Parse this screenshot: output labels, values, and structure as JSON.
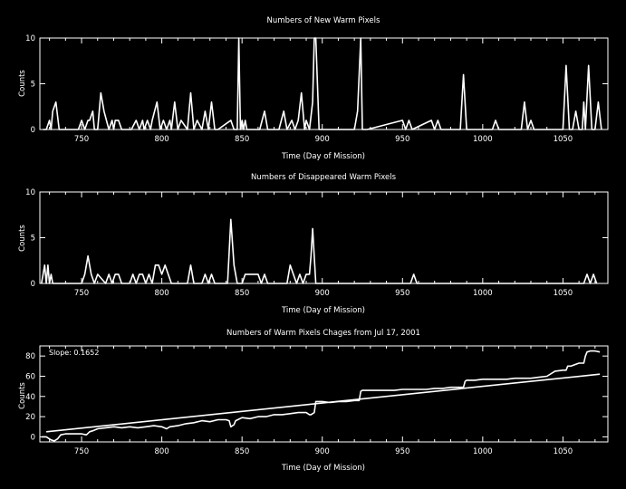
{
  "colors": {
    "background": "#000000",
    "foreground": "#ffffff"
  },
  "chart_data": [
    {
      "type": "line",
      "title": "Numbers of New Warm Pixels",
      "xlabel": "Time (Day of Mission)",
      "ylabel": "Counts",
      "xlim": [
        724,
        1078
      ],
      "ylim": [
        0,
        10
      ],
      "x_ticks": [
        750,
        800,
        850,
        900,
        950,
        1000,
        1050
      ],
      "y_ticks": [
        0,
        5,
        10
      ],
      "grid": false,
      "series": [
        {
          "x": [
            726,
            728,
            730,
            731,
            732,
            734,
            736,
            748,
            750,
            752,
            754,
            755,
            757,
            758,
            760,
            762,
            764,
            767,
            769,
            770,
            771,
            773,
            775,
            781,
            784,
            786,
            788,
            789,
            791,
            793,
            794,
            797,
            799,
            801,
            803,
            805,
            806,
            808,
            810,
            812,
            816,
            818,
            820,
            822,
            825,
            827,
            829,
            831,
            833,
            835,
            843,
            845,
            847,
            848,
            849,
            850,
            851,
            852,
            853,
            855,
            861,
            864,
            866,
            873,
            876,
            878,
            881,
            883,
            885,
            887,
            889,
            890,
            892,
            894,
            895,
            896,
            898,
            900,
            920,
            922,
            924,
            925,
            926,
            928,
            950,
            952,
            954,
            956,
            968,
            970,
            972,
            974,
            986,
            988,
            990,
            992,
            1006,
            1008,
            1010,
            1024,
            1026,
            1028,
            1030,
            1032,
            1050,
            1052,
            1054,
            1056,
            1058,
            1060,
            1062,
            1063,
            1064,
            1066,
            1068,
            1070,
            1072,
            1074
          ],
          "y": [
            0,
            0,
            1,
            0,
            2,
            3,
            0,
            0,
            1,
            0,
            1,
            1,
            2,
            0,
            0,
            4,
            2,
            0,
            1,
            0,
            1,
            1,
            0,
            0,
            1,
            0,
            1,
            0,
            1,
            0,
            1,
            3,
            0,
            1,
            0,
            1,
            0,
            3,
            0,
            1,
            0,
            4,
            0,
            1,
            0,
            2,
            0,
            3,
            0,
            0,
            1,
            0,
            0,
            10,
            0,
            1,
            0,
            1,
            0,
            0,
            0,
            2,
            0,
            0,
            2,
            0,
            1,
            0,
            1,
            4,
            0,
            1,
            0,
            3,
            10,
            10,
            0,
            0,
            0,
            2,
            10,
            0,
            0,
            0,
            1,
            0,
            1,
            0,
            1,
            0,
            1,
            0,
            0,
            6,
            0,
            0,
            0,
            1,
            0,
            0,
            3,
            0,
            1,
            0,
            0,
            7,
            0,
            0,
            2,
            0,
            0,
            3,
            0,
            7,
            0,
            0,
            3,
            0
          ]
        }
      ]
    },
    {
      "type": "line",
      "title": "Numbers of Disappeared Warm Pixels",
      "xlabel": "Time (Day of Mission)",
      "ylabel": "Counts",
      "xlim": [
        724,
        1078
      ],
      "ylim": [
        0,
        10
      ],
      "x_ticks": [
        750,
        800,
        850,
        900,
        950,
        1000,
        1050
      ],
      "y_ticks": [
        0,
        5,
        10
      ],
      "grid": false,
      "series": [
        {
          "x": [
            725,
            727,
            728,
            729,
            730,
            731,
            732,
            750,
            752,
            754,
            756,
            758,
            760,
            765,
            767,
            769,
            771,
            773,
            775,
            780,
            782,
            784,
            786,
            788,
            790,
            792,
            794,
            796,
            798,
            800,
            802,
            804,
            806,
            808,
            816,
            818,
            820,
            825,
            827,
            829,
            831,
            833,
            841,
            843,
            845,
            847,
            850,
            852,
            860,
            862,
            864,
            866,
            878,
            880,
            882,
            884,
            886,
            888,
            890,
            892,
            893,
            894,
            896,
            898,
            955,
            957,
            959,
            1063,
            1065,
            1067,
            1069,
            1071
          ],
          "y": [
            0,
            2,
            0,
            2,
            0,
            1,
            0,
            0,
            1,
            3,
            1,
            0,
            1,
            0,
            1,
            0,
            1,
            1,
            0,
            0,
            1,
            0,
            1,
            1,
            0,
            1,
            0,
            2,
            2,
            1,
            2,
            1,
            0,
            0,
            0,
            2,
            0,
            0,
            1,
            0,
            1,
            0,
            0,
            7,
            2,
            0,
            0,
            1,
            1,
            0,
            1,
            0,
            0,
            2,
            1,
            0,
            1,
            0,
            1,
            1,
            3,
            6,
            0,
            0,
            0,
            1,
            0,
            0,
            1,
            0,
            1,
            0
          ]
        }
      ]
    },
    {
      "type": "line",
      "title": "Numbers of Warm Pixels Chages from Jul 17, 2001",
      "xlabel": "Time (Day of Mission)",
      "ylabel": "Counts",
      "annotation": "Slope: 0.1652",
      "xlim": [
        724,
        1078
      ],
      "ylim": [
        -5,
        90
      ],
      "x_ticks": [
        750,
        800,
        850,
        900,
        950,
        1000,
        1050
      ],
      "y_ticks": [
        0,
        20,
        40,
        60,
        80
      ],
      "grid": false,
      "series": [
        {
          "name": "",
          "x": [
            725,
            728,
            731,
            733,
            735,
            737,
            740,
            745,
            750,
            753,
            755,
            757,
            760,
            765,
            770,
            775,
            780,
            785,
            790,
            795,
            800,
            803,
            805,
            810,
            815,
            820,
            825,
            830,
            835,
            840,
            842,
            843,
            845,
            846,
            850,
            855,
            860,
            865,
            870,
            875,
            880,
            885,
            890,
            892,
            893,
            895,
            896,
            900,
            905,
            910,
            915,
            920,
            923,
            924,
            925,
            930,
            935,
            940,
            945,
            950,
            955,
            960,
            965,
            970,
            975,
            980,
            985,
            988,
            989,
            990,
            995,
            1000,
            1005,
            1010,
            1015,
            1020,
            1025,
            1030,
            1035,
            1040,
            1045,
            1050,
            1052,
            1053,
            1055,
            1060,
            1063,
            1064,
            1065,
            1067,
            1070,
            1073
          ],
          "y": [
            0,
            0,
            -3,
            -4,
            -2,
            2,
            3,
            3,
            3,
            2,
            5,
            6,
            8,
            9,
            10,
            9,
            10,
            9,
            10,
            11,
            10,
            8,
            10,
            11,
            13,
            14,
            16,
            15,
            17,
            17,
            16,
            10,
            12,
            16,
            19,
            18,
            20,
            20,
            22,
            22,
            23,
            24,
            24,
            22,
            22,
            24,
            35,
            35,
            34,
            35,
            35,
            36,
            36,
            45,
            46,
            46,
            46,
            46,
            46,
            47,
            47,
            47,
            47,
            48,
            48,
            49,
            49,
            49,
            55,
            56,
            56,
            57,
            57,
            57,
            57,
            58,
            58,
            58,
            59,
            60,
            65,
            66,
            66,
            70,
            70,
            73,
            73,
            80,
            84,
            85,
            85,
            84
          ]
        },
        {
          "name": "",
          "x": [
            728,
            1073
          ],
          "y": [
            5,
            62
          ]
        }
      ]
    }
  ]
}
